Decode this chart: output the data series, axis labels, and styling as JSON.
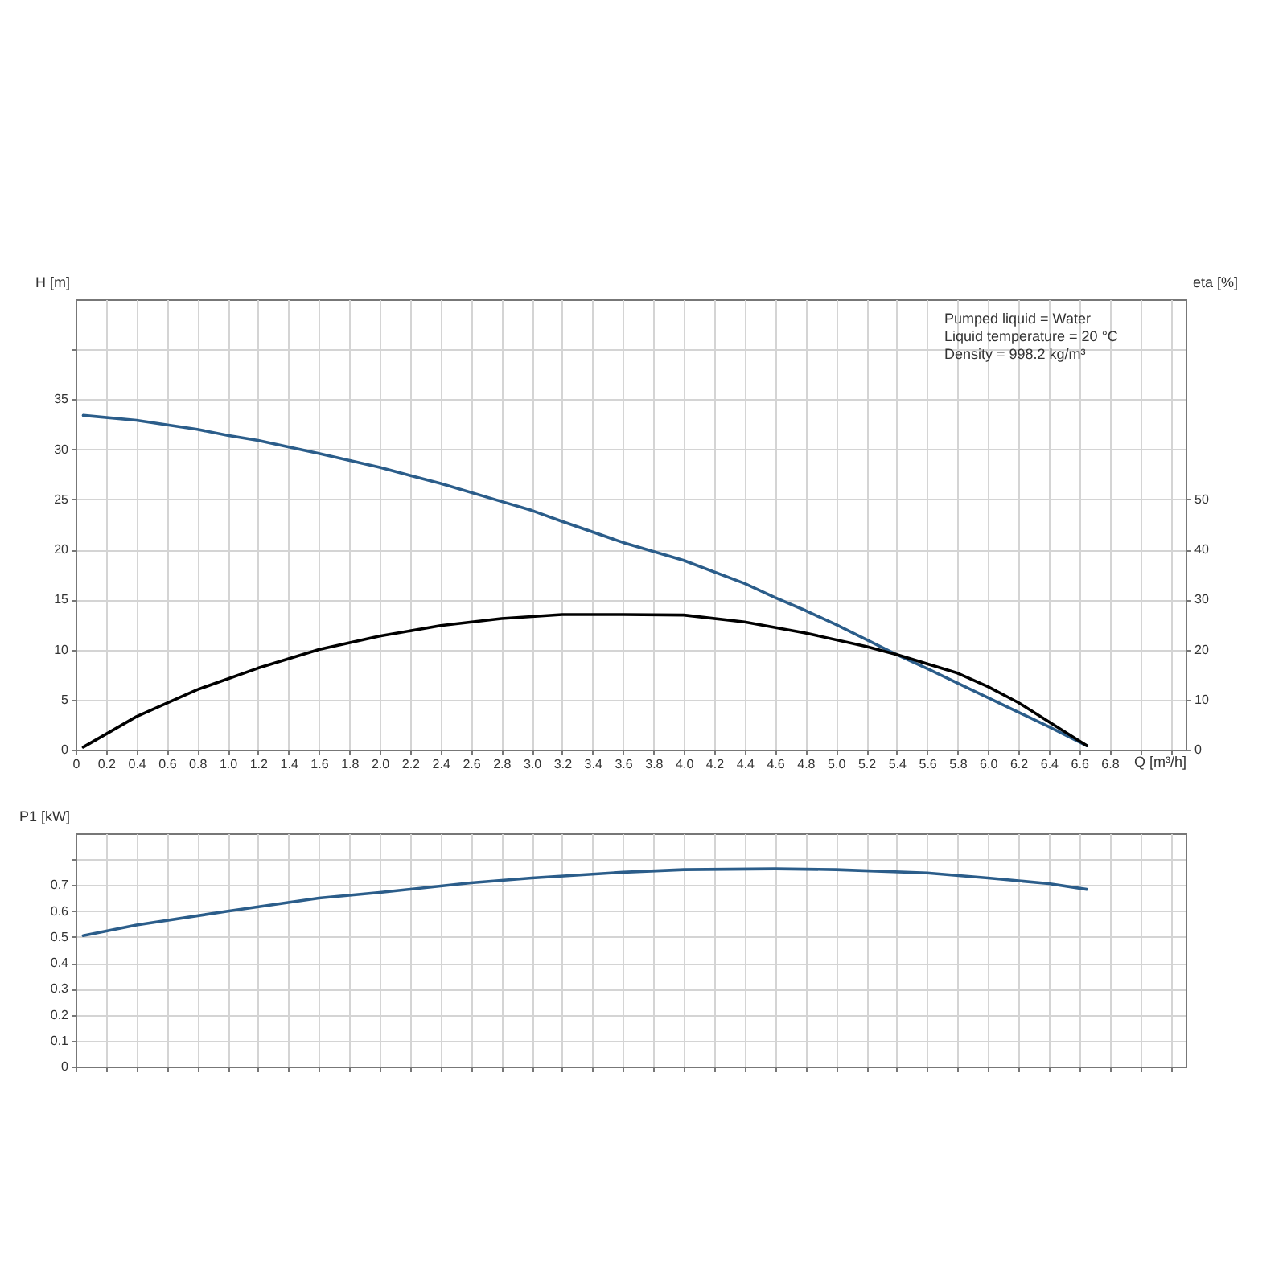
{
  "chart_data": [
    {
      "type": "line",
      "xlabel": "Q [m³/h]",
      "ylabel": "H [m]",
      "y2label": "eta [%]",
      "annotations": [
        "Pumped liquid = Water",
        "Liquid temperature = 20 °C",
        "Density = 998.2 kg/m³"
      ],
      "xlim": [
        0,
        7.3
      ],
      "xticks": [
        0,
        0.2,
        0.4,
        0.6,
        0.8,
        {
          "value": 1,
          "label": "1.0"
        },
        1.2,
        1.4,
        1.6,
        1.8,
        {
          "value": 2,
          "label": "2.0"
        },
        2.2,
        2.4,
        2.6,
        2.8,
        {
          "value": 3,
          "label": "3.0"
        },
        3.2,
        3.4,
        3.6,
        3.8,
        {
          "value": 4,
          "label": "4.0"
        },
        4.2,
        4.4,
        4.6,
        4.8,
        {
          "value": 5,
          "label": "5.0"
        },
        5.2,
        5.4,
        5.6,
        5.8,
        {
          "value": 6,
          "label": "6.0"
        },
        6.2,
        6.4,
        6.6,
        6.8,
        {
          "value": 7,
          "label": null
        },
        {
          "value": 7.2,
          "label": null
        }
      ],
      "ylim": [
        0,
        45
      ],
      "yticks": [
        0,
        5,
        10,
        15,
        20,
        25,
        30,
        35,
        {
          "value": 40,
          "label": null
        }
      ],
      "y2lim": [
        0,
        90
      ],
      "y2ticks": [
        0,
        10,
        20,
        30,
        40,
        50
      ],
      "grid": true,
      "marker": "none",
      "line_style": "solid",
      "series": [
        {
          "color": "#2b5d8a",
          "x": [
            0.05,
            0.4,
            0.8,
            1.0,
            1.2,
            1.6,
            2.0,
            2.4,
            2.8,
            3.0,
            3.2,
            3.6,
            4.0,
            4.4,
            4.6,
            4.8,
            5.0,
            5.2,
            5.4,
            5.6,
            6.0,
            6.4,
            6.65
          ],
          "values": [
            33.4,
            32.9,
            32.0,
            31.4,
            30.9,
            29.6,
            28.2,
            26.6,
            24.8,
            23.9,
            22.8,
            20.7,
            18.9,
            16.6,
            15.2,
            13.9,
            12.5,
            11.0,
            9.5,
            8.1,
            5.2,
            2.3,
            0.4
          ]
        },
        {
          "color": "#000000",
          "axis": "y2",
          "x": [
            0.05,
            0.4,
            0.8,
            1.2,
            1.6,
            2.0,
            2.4,
            2.8,
            3.2,
            3.6,
            4.0,
            4.4,
            4.8,
            5.2,
            5.4,
            5.8,
            6.0,
            6.2,
            6.4,
            6.65
          ],
          "values": [
            0.5,
            6.6,
            12,
            16.3,
            20,
            22.7,
            24.8,
            26.2,
            27.0,
            27.0,
            26.9,
            25.5,
            23.3,
            20.6,
            19.0,
            15.3,
            12.6,
            9.4,
            5.6,
            0.8
          ]
        }
      ]
    },
    {
      "type": "line",
      "ylabel": "P1 [kW]",
      "tick_labels": "y",
      "xlim": [
        0,
        7.3
      ],
      "xticks": [
        0,
        0.2,
        0.4,
        0.6,
        0.8,
        1,
        1.2,
        1.4,
        1.6,
        1.8,
        2,
        2.2,
        2.4,
        2.6,
        2.8,
        3,
        3.2,
        3.4,
        3.6,
        3.8,
        4,
        4.2,
        4.4,
        4.6,
        4.8,
        5,
        5.2,
        5.4,
        5.6,
        5.8,
        6,
        6.2,
        6.4,
        6.6,
        6.8,
        7,
        7.2
      ],
      "ylim": [
        0,
        0.9
      ],
      "yticks": [
        0,
        0.1,
        0.2,
        0.3,
        0.4,
        0.5,
        0.6,
        0.7,
        {
          "value": 0.8,
          "label": null
        }
      ],
      "grid": true,
      "marker": "none",
      "line_style": "solid",
      "series": [
        {
          "color": "#2b5d8a",
          "x": [
            0.05,
            0.4,
            1.0,
            1.6,
            2.0,
            2.6,
            3.0,
            3.6,
            4.0,
            4.6,
            5.0,
            5.6,
            6.0,
            6.4,
            6.65
          ],
          "values": [
            0.505,
            0.546,
            0.6,
            0.65,
            0.672,
            0.709,
            0.728,
            0.75,
            0.76,
            0.763,
            0.76,
            0.747,
            0.728,
            0.706,
            0.684
          ]
        }
      ]
    }
  ]
}
